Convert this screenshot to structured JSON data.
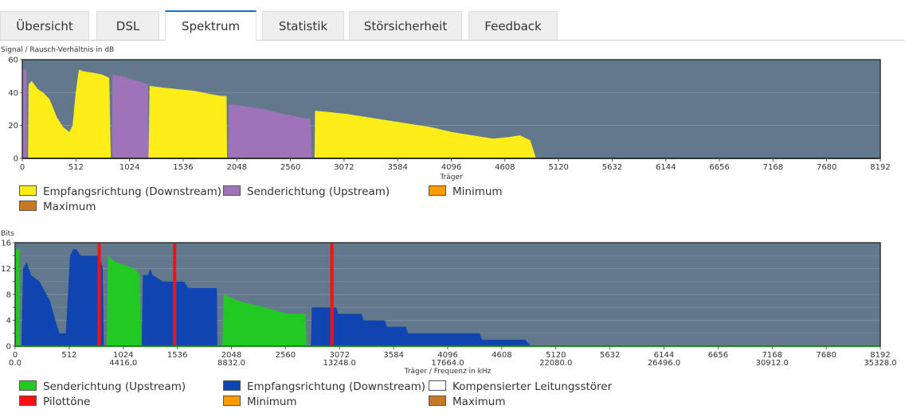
{
  "tabs": [
    "Übersicht",
    "DSL",
    "Spektrum",
    "Statistik",
    "Störsicherheit",
    "Feedback"
  ],
  "active_tab": "Spektrum",
  "chart_data": [
    {
      "type": "area",
      "ylabel": "Signal / Rausch-Verhältnis in dB",
      "xlabel": "Träger",
      "xlim": [
        0,
        8192
      ],
      "ylim": [
        0,
        60
      ],
      "xticks": [
        "0",
        "512",
        "1024",
        "1536",
        "2048",
        "2560",
        "3072",
        "3584",
        "4096",
        "4608",
        "5120",
        "5632",
        "6144",
        "6656",
        "7168",
        "7680",
        "8192"
      ],
      "yticks": [
        "0",
        "20",
        "40",
        "60"
      ],
      "grid": true,
      "background": "#62788c",
      "series": [
        {
          "name": "Empfangsrichtung (Downstream)",
          "color": "#ffed1a",
          "segments": [
            [
              [
                55,
                0
              ],
              [
                60,
                45
              ],
              [
                90,
                47
              ],
              [
                150,
                42
              ],
              [
                200,
                40
              ],
              [
                260,
                36
              ],
              [
                330,
                25
              ],
              [
                390,
                19
              ],
              [
                450,
                16
              ],
              [
                480,
                20
              ],
              [
                510,
                40
              ],
              [
                540,
                54
              ],
              [
                580,
                53
              ],
              [
                680,
                52
              ],
              [
                760,
                51
              ],
              [
                830,
                49
              ],
              [
                845,
                0
              ]
            ],
            [
              [
                1205,
                0
              ],
              [
                1215,
                44
              ],
              [
                1350,
                43
              ],
              [
                1500,
                42
              ],
              [
                1650,
                41
              ],
              [
                1800,
                39
              ],
              [
                1900,
                38
              ],
              [
                1950,
                38
              ],
              [
                1955,
                0
              ]
            ],
            [
              [
                2790,
                0
              ],
              [
                2795,
                29
              ],
              [
                2950,
                28
              ],
              [
                3100,
                27
              ],
              [
                3300,
                25
              ],
              [
                3500,
                23
              ],
              [
                3700,
                21
              ],
              [
                3900,
                19
              ],
              [
                4100,
                16
              ],
              [
                4300,
                14
              ],
              [
                4500,
                12
              ],
              [
                4650,
                13
              ],
              [
                4750,
                14
              ],
              [
                4850,
                11
              ],
              [
                4905,
                0
              ]
            ]
          ]
        },
        {
          "name": "Senderichtung (Upstream)",
          "color": "#9e73b8",
          "segments": [
            [
              [
                0,
                0
              ],
              [
                5,
                54
              ],
              [
                40,
                54
              ],
              [
                45,
                0
              ]
            ],
            [
              [
                855,
                0
              ],
              [
                860,
                51
              ],
              [
                950,
                50
              ],
              [
                1050,
                48
              ],
              [
                1150,
                46
              ],
              [
                1200,
                45
              ],
              [
                1205,
                0
              ]
            ],
            [
              [
                1965,
                0
              ],
              [
                1970,
                33
              ],
              [
                2100,
                32
              ],
              [
                2300,
                30
              ],
              [
                2500,
                27
              ],
              [
                2650,
                25
              ],
              [
                2750,
                24
              ],
              [
                2765,
                0
              ]
            ]
          ]
        },
        {
          "name": "Minimum",
          "color": "#ff9a00",
          "segments": []
        },
        {
          "name": "Maximum",
          "color": "#c87820",
          "segments": []
        }
      ]
    },
    {
      "type": "area",
      "ylabel": "Bits",
      "xlabel": "Träger / Frequenz in kHz",
      "xlim": [
        0,
        8192
      ],
      "ylim": [
        0,
        16
      ],
      "xticks": [
        "0",
        "512",
        "1024",
        "1536",
        "2048",
        "2560",
        "3072",
        "3584",
        "4096",
        "4608",
        "5120",
        "5632",
        "6144",
        "6656",
        "7168",
        "7680",
        "8192"
      ],
      "freq_ticks": [
        "0.0",
        "4416.0",
        "8832.0",
        "13248.0",
        "17664.0",
        "22080.0",
        "26496.0",
        "30912.0",
        "35328.0"
      ],
      "yticks": [
        "0",
        "4",
        "8",
        "12",
        "16"
      ],
      "grid": true,
      "background": "#62788c",
      "series": [
        {
          "name": "Senderichtung (Upstream)",
          "color": "#22c922",
          "segments": [
            [
              [
                0,
                0
              ],
              [
                5,
                15
              ],
              [
                40,
                15
              ],
              [
                45,
                0
              ]
            ],
            [
              [
                865,
                0
              ],
              [
                880,
                14
              ],
              [
                950,
                13
              ],
              [
                1130,
                12
              ],
              [
                1180,
                11
              ],
              [
                1195,
                0
              ]
            ],
            [
              [
                1960,
                0
              ],
              [
                1975,
                8
              ],
              [
                2110,
                7
              ],
              [
                2360,
                6
              ],
              [
                2580,
                5
              ],
              [
                2750,
                5
              ],
              [
                2760,
                0
              ]
            ]
          ]
        },
        {
          "name": "Empfangsrichtung (Downstream)",
          "color": "#1044b0",
          "segments": [
            [
              [
                60,
                0
              ],
              [
                75,
                12
              ],
              [
                110,
                13
              ],
              [
                150,
                11
              ],
              [
                230,
                10
              ],
              [
                330,
                7
              ],
              [
                380,
                4
              ],
              [
                420,
                2
              ],
              [
                480,
                2
              ],
              [
                520,
                14
              ],
              [
                550,
                15
              ],
              [
                580,
                15
              ],
              [
                620,
                14
              ],
              [
                800,
                14
              ],
              [
                830,
                12
              ],
              [
                840,
                0
              ]
            ],
            [
              [
                1200,
                0
              ],
              [
                1210,
                11
              ],
              [
                1260,
                11
              ],
              [
                1280,
                12
              ],
              [
                1300,
                11
              ],
              [
                1400,
                10
              ],
              [
                1450,
                10
              ],
              [
                1600,
                10
              ],
              [
                1640,
                9
              ],
              [
                1700,
                9
              ],
              [
                1800,
                9
              ],
              [
                1910,
                9
              ],
              [
                1915,
                0
              ]
            ],
            [
              [
                2800,
                0
              ],
              [
                2810,
                6
              ],
              [
                3040,
                6
              ],
              [
                3060,
                5
              ],
              [
                3280,
                5
              ],
              [
                3300,
                4
              ],
              [
                3500,
                4
              ],
              [
                3520,
                3
              ],
              [
                3700,
                3
              ],
              [
                3720,
                2
              ],
              [
                4400,
                2
              ],
              [
                4420,
                1
              ],
              [
                4830,
                1
              ],
              [
                4880,
                0
              ]
            ]
          ]
        },
        {
          "name": "Kompensierter Leitungsstörer",
          "color": "#ffffff",
          "segments": []
        },
        {
          "name": "Pilottöne",
          "color": "#ff1010",
          "carriers": [
            795,
            1510,
            3000
          ]
        },
        {
          "name": "Minimum",
          "color": "#ff9a00",
          "segments": []
        },
        {
          "name": "Maximum",
          "color": "#c87820",
          "segments": []
        }
      ]
    }
  ]
}
